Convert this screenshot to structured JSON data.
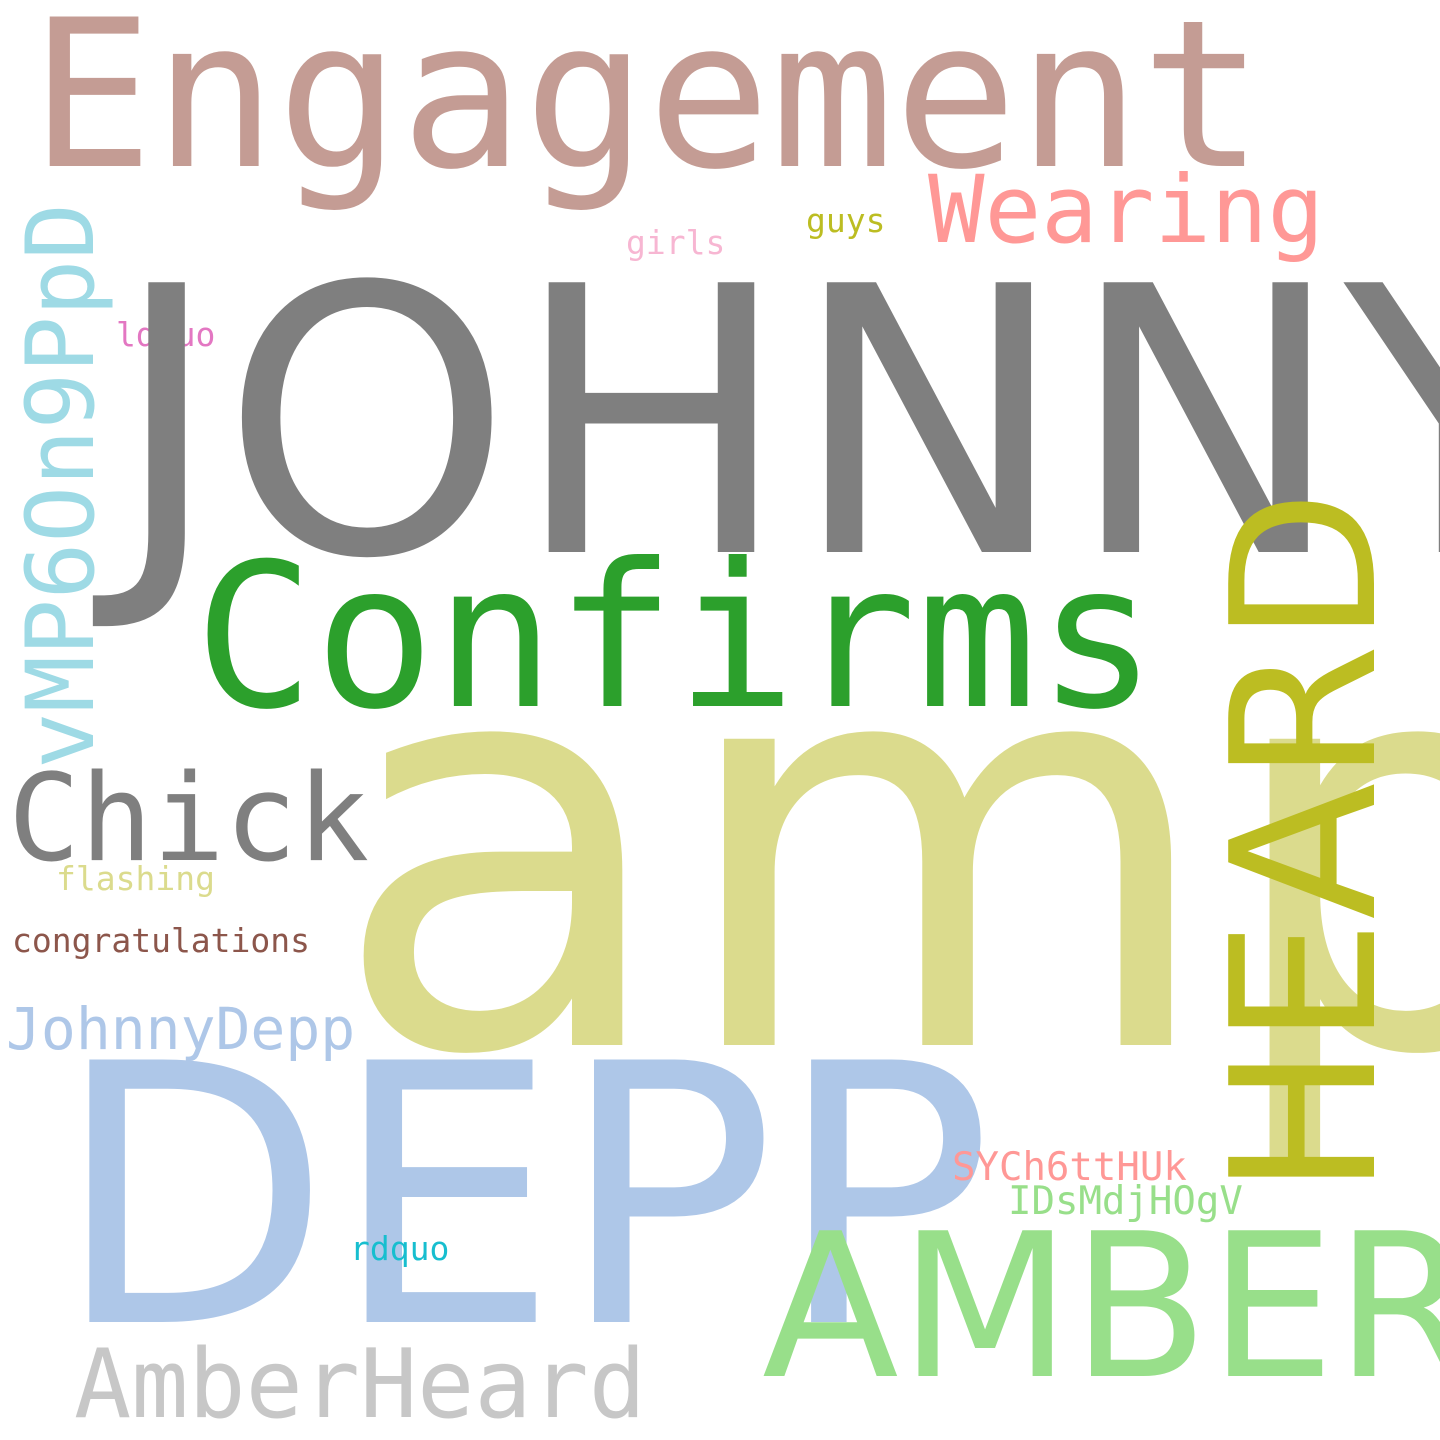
{
  "words": {
    "engagement": {
      "text": "Engagement",
      "color": "#c49c94"
    },
    "wearing": {
      "text": "Wearing",
      "color": "#ff9896"
    },
    "guys": {
      "text": "guys",
      "color": "#bcbd22"
    },
    "girls": {
      "text": "girls",
      "color": "#f7b6d2"
    },
    "ldquo": {
      "text": "ldquo",
      "color": "#e377c2"
    },
    "johnny": {
      "text": "JOHNNY",
      "color": "#7f7f7f"
    },
    "confirms": {
      "text": "Confirms",
      "color": "#2ca02c"
    },
    "heard": {
      "text": "HEARD",
      "color": "#bcbd22"
    },
    "vmp": {
      "text": "vMP6On9PpD",
      "color": "#9edae5"
    },
    "chick": {
      "text": "Chick",
      "color": "#7f7f7f"
    },
    "amp": {
      "text": "amp",
      "color": "#dbdb8d"
    },
    "flashing": {
      "text": "flashing",
      "color": "#dbdb8d"
    },
    "congratulations": {
      "text": "congratulations",
      "color": "#8c564b"
    },
    "johnnydepp": {
      "text": "JohnnyDepp",
      "color": "#aec7e8"
    },
    "depp": {
      "text": "DEPP",
      "color": "#aec7e8"
    },
    "sych": {
      "text": "SYCh6ttHUk",
      "color": "#ff9896"
    },
    "idsmd": {
      "text": "IDsMdjHOgV",
      "color": "#98df8a"
    },
    "rdquo": {
      "text": "rdquo",
      "color": "#17becf"
    },
    "amber": {
      "text": "AMBER",
      "color": "#98df8a"
    },
    "amberheard": {
      "text": "AmberHeard",
      "color": "#c7c7c7"
    }
  }
}
